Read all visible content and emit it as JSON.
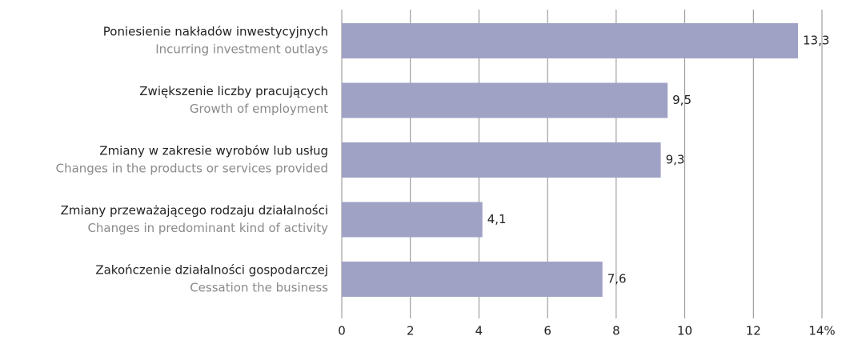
{
  "chart_data": {
    "type": "bar",
    "orientation": "horizontal",
    "categories": [
      [
        "Poniesienie nakładów inwestycyjnych",
        "Incurring investment outlays"
      ],
      [
        "Zwiększenie liczby pracujących",
        "Growth of employment"
      ],
      [
        "Zmiany w zakresie wyrobów lub usług",
        "Changes in the products or services provided"
      ],
      [
        "Zmiany przeważającego rodzaju działalności",
        "Changes in predominant kind of activity"
      ],
      [
        "Zakończenie działalności gospodarczej",
        "Cessation the business"
      ]
    ],
    "values": [
      13.3,
      9.5,
      9.3,
      4.1,
      7.6
    ],
    "value_labels": [
      "13,3",
      "9,5",
      "9,3",
      "4,1",
      "7,6"
    ],
    "color": "#9fa2c4",
    "xlim": [
      0,
      14
    ],
    "xticks": [
      0,
      2,
      4,
      6,
      8,
      10,
      12,
      {
        "value": 14,
        "label": "14%"
      }
    ],
    "grid": true
  }
}
